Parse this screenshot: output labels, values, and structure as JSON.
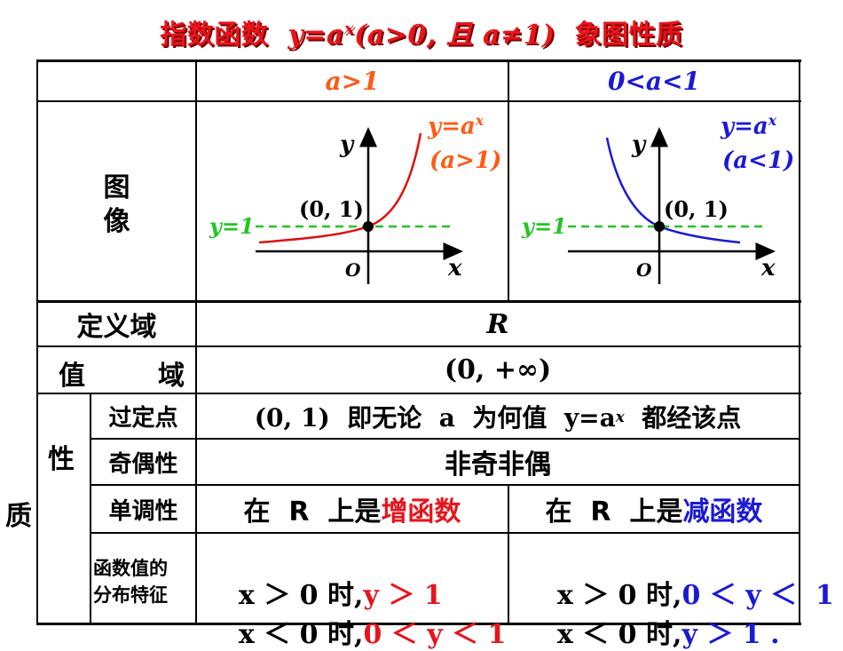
{
  "title": {
    "prefix": "指数函数",
    "formula": "y=a",
    "exp": "x",
    "cond": "(a>0, 且 a≠1)",
    "suffix": "象图性质"
  },
  "header": {
    "col1": "a>1",
    "col2": "0<a<1"
  },
  "rows": {
    "image_label_1": "图",
    "image_label_2": "像",
    "domain_label": "定义域",
    "domain_value": "R",
    "range_label_1": "值",
    "range_label_2": "域",
    "range_value": "(0, +∞)",
    "property_label": "性",
    "property_label_2": "质",
    "fixed_point_label": "过定点",
    "fixed_point_value": "(0, 1)  即无论  a  为何值  y=a",
    "fixed_point_exp": "x",
    "fixed_point_tail": "  都经该点",
    "parity_label": "奇偶性",
    "parity_value": "非奇非偶",
    "monotonic_label": "单调性",
    "mono_left_prefix": "在  R  上是",
    "mono_left_value": "增函数",
    "mono_right_prefix": "在  R  上是",
    "mono_right_value": "减函数",
    "dist_label_1": "函数值的",
    "dist_label_2": "分布特征",
    "dist_left_1a": "x ＞ 0 时,",
    "dist_left_1b": "y ＞ 1",
    "dist_left_2a": "x ＜ 0 时,",
    "dist_left_2b": "0 ＜ y ＜ 1",
    "dist_right_1a": "x ＞ 0 时,",
    "dist_right_1b": "0 ＜ y ＜  1",
    "dist_right_2a": "x ＜ 0 时,",
    "dist_right_2b": "y ＞ 1 ."
  },
  "graph_left": {
    "y_axis": "y",
    "x_axis": "x",
    "origin": "O",
    "point": "(0, 1)",
    "hline": "y=1",
    "curve_label_1": "y=a",
    "curve_label_exp": "x",
    "curve_label_2": "(a>1)"
  },
  "graph_right": {
    "y_axis": "y",
    "x_axis": "x",
    "origin": "O",
    "point": "(0, 1)",
    "hline": "y=1",
    "curve_label_1": "y=a",
    "curve_label_exp": "x",
    "curve_label_2": "(a<1)"
  },
  "colors": {
    "title": "#e8141b",
    "increase": "#e8141b",
    "decrease": "#1a1ad6",
    "hline": "#22c522",
    "header_left": "#ff5a14"
  }
}
